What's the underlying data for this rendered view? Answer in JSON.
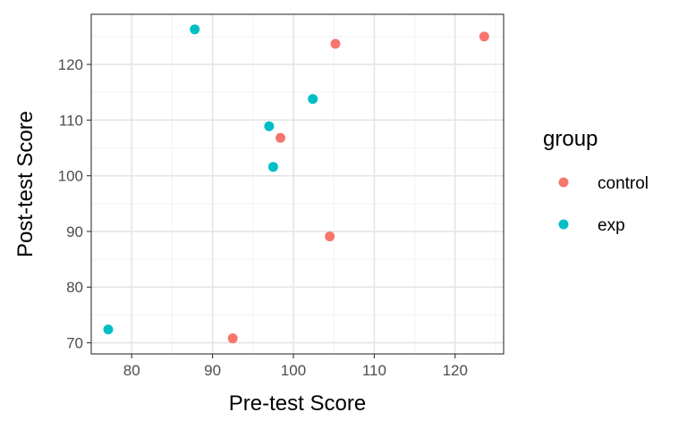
{
  "chart_data": {
    "type": "scatter",
    "title": "",
    "xlabel": "Pre-test Score",
    "ylabel": "Post-test Score",
    "xlim": [
      75,
      126
    ],
    "ylim": [
      68,
      129
    ],
    "x_ticks": [
      80,
      90,
      100,
      110,
      120
    ],
    "y_ticks": [
      70,
      80,
      90,
      100,
      110,
      120
    ],
    "grid": true,
    "legend": {
      "title": "group",
      "position": "right",
      "entries": [
        {
          "label": "control",
          "color": "#F8766D"
        },
        {
          "label": "exp",
          "color": "#00BFC4"
        }
      ]
    },
    "series": [
      {
        "name": "control",
        "color": "#F8766D",
        "points": [
          {
            "x": 105.2,
            "y": 123.7
          },
          {
            "x": 123.6,
            "y": 125.0
          },
          {
            "x": 98.4,
            "y": 106.8
          },
          {
            "x": 104.5,
            "y": 89.1
          },
          {
            "x": 92.5,
            "y": 70.8
          }
        ]
      },
      {
        "name": "exp",
        "color": "#00BFC4",
        "points": [
          {
            "x": 87.8,
            "y": 126.3
          },
          {
            "x": 102.4,
            "y": 113.8
          },
          {
            "x": 97.0,
            "y": 108.9
          },
          {
            "x": 97.5,
            "y": 101.6
          },
          {
            "x": 77.1,
            "y": 72.4
          }
        ]
      }
    ]
  }
}
